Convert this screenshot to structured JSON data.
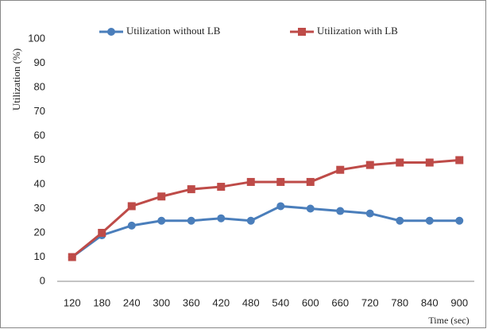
{
  "chart_data": {
    "type": "line",
    "x_label": "Time (sec)",
    "y_label": "Utilization (%)",
    "categories": [
      "120",
      "180",
      "240",
      "300",
      "360",
      "420",
      "480",
      "540",
      "600",
      "660",
      "720",
      "780",
      "840",
      "900"
    ],
    "series": [
      {
        "name": "Utilization without LB",
        "color": "#4a7ebb",
        "marker": "circle",
        "values": [
          10,
          19,
          23,
          25,
          25,
          26,
          25,
          31,
          30,
          29,
          28,
          25,
          25,
          25
        ]
      },
      {
        "name": "Utilization with LB",
        "color": "#be4b48",
        "marker": "square",
        "values": [
          10,
          20,
          31,
          35,
          38,
          39,
          41,
          41,
          41,
          46,
          48,
          49,
          49,
          50
        ]
      }
    ],
    "ylim": [
      0,
      100
    ],
    "yticks": [
      0,
      10,
      20,
      30,
      40,
      50,
      60,
      70,
      80,
      90,
      100
    ],
    "grid": false,
    "legend": "top"
  }
}
